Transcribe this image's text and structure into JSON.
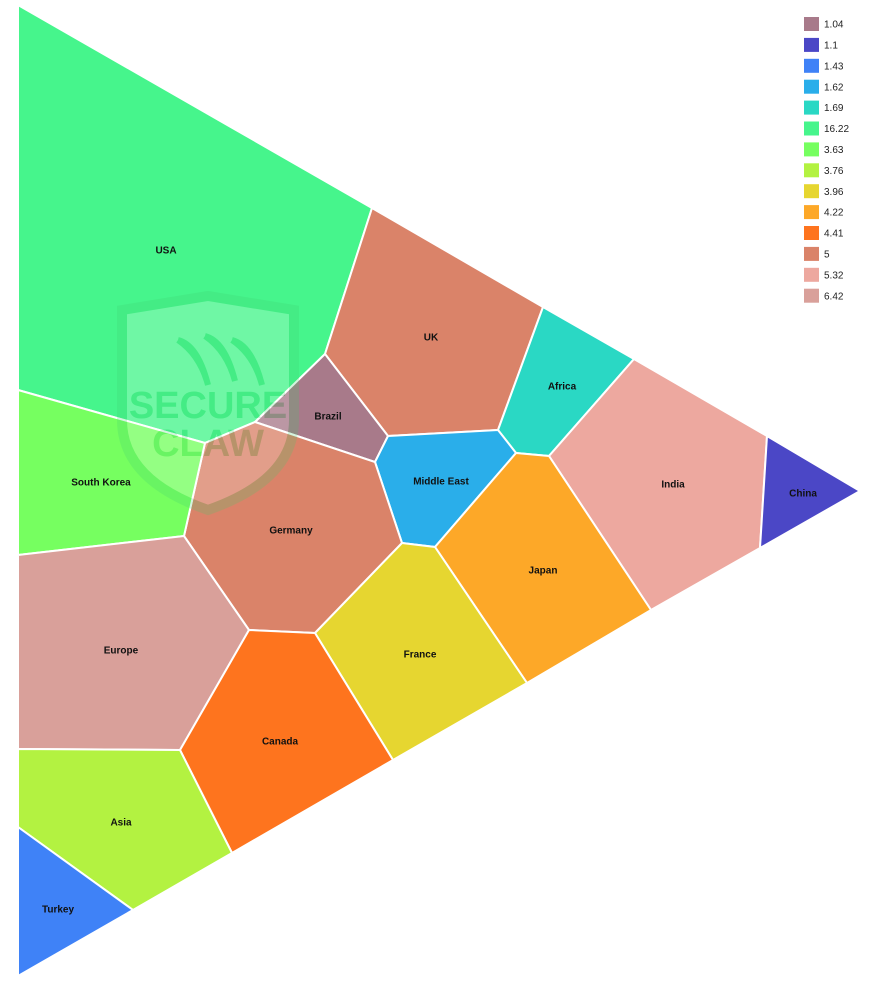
{
  "chart_data": {
    "type": "voronoi-treemap",
    "cells": [
      {
        "name": "USA",
        "value": 16.22,
        "color": "#46f58c"
      },
      {
        "name": "UK",
        "value": 5,
        "color": "#da8369"
      },
      {
        "name": "Brazil",
        "value": 1.04,
        "color": "#a87a8a"
      },
      {
        "name": "Africa",
        "value": 1.69,
        "color": "#2ad8c4"
      },
      {
        "name": "India",
        "value": 5.32,
        "color": "#eda89f"
      },
      {
        "name": "China",
        "value": 1.1,
        "color": "#4b47c6"
      },
      {
        "name": "Middle East",
        "value": 1.62,
        "color": "#2aaeea"
      },
      {
        "name": "Japan",
        "value": 4.22,
        "color": "#fda828"
      },
      {
        "name": "Germany",
        "value": 5,
        "color": "#da8369"
      },
      {
        "name": "South Korea",
        "value": 3.63,
        "color": "#76ff60"
      },
      {
        "name": "Europe",
        "value": 6.42,
        "color": "#d9a09a"
      },
      {
        "name": "France",
        "value": 3.96,
        "color": "#e6d630"
      },
      {
        "name": "Canada",
        "value": 4.41,
        "color": "#fe741e"
      },
      {
        "name": "Asia",
        "value": 3.76,
        "color": "#b3f241"
      },
      {
        "name": "Turkey",
        "value": 1.43,
        "color": "#3f82f7"
      }
    ],
    "legend": {
      "placement": "top-right",
      "entries": [
        {
          "label": "1.04",
          "color": "#a87a8a"
        },
        {
          "label": "1.1",
          "color": "#4b47c6"
        },
        {
          "label": "1.43",
          "color": "#3f82f7"
        },
        {
          "label": "1.62",
          "color": "#2aaeea"
        },
        {
          "label": "1.69",
          "color": "#2ad8c4"
        },
        {
          "label": "16.22",
          "color": "#46f58c"
        },
        {
          "label": "3.63",
          "color": "#76ff60"
        },
        {
          "label": "3.76",
          "color": "#b3f241"
        },
        {
          "label": "3.96",
          "color": "#e6d630"
        },
        {
          "label": "4.22",
          "color": "#fda828"
        },
        {
          "label": "4.41",
          "color": "#fe741e"
        },
        {
          "label": "5",
          "color": "#da8369"
        },
        {
          "label": "5.32",
          "color": "#eda89f"
        },
        {
          "label": "6.42",
          "color": "#d9a09a"
        }
      ]
    }
  },
  "watermark": {
    "text_line1": "SECURE",
    "text_line2": "CLAW"
  }
}
